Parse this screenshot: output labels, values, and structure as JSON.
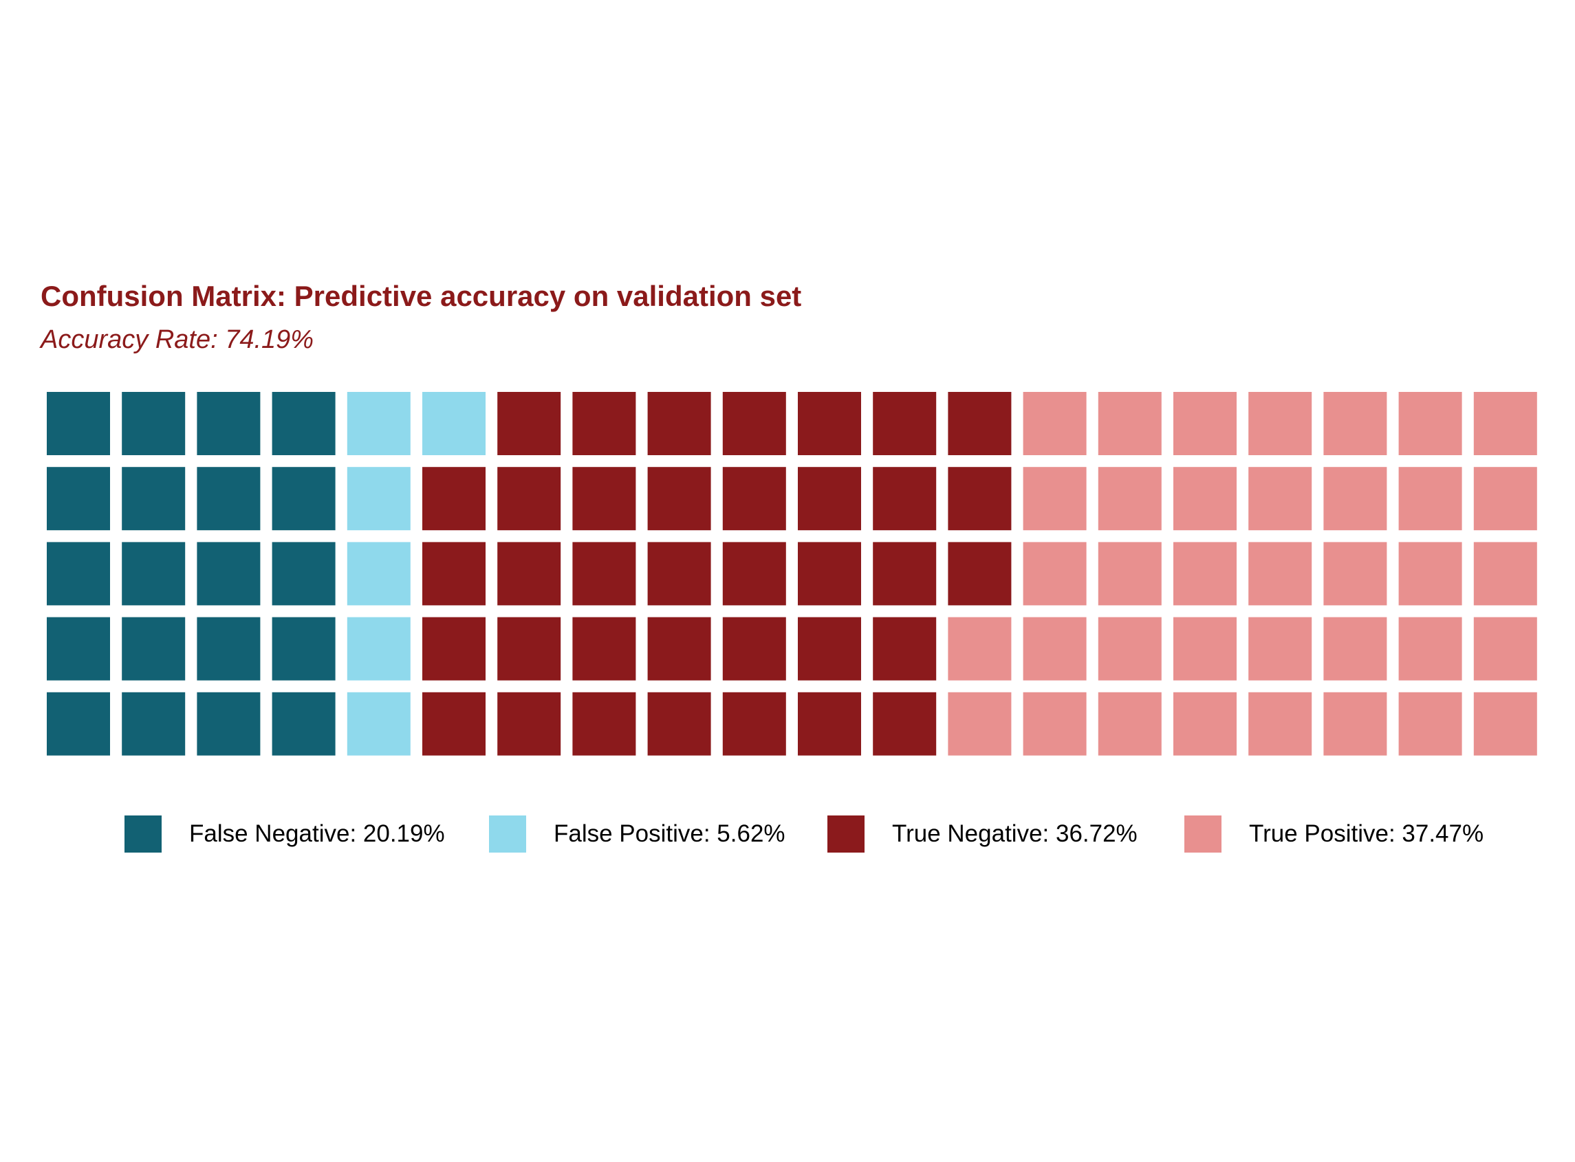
{
  "chart_data": {
    "type": "waffle",
    "title": "Confusion Matrix: Predictive accuracy on validation set",
    "subtitle": "Accuracy Rate: 74.19%",
    "title_color": "#8B1A1A",
    "grid": {
      "rows": 5,
      "columns": 20
    },
    "fill_order": "column-major, top to bottom",
    "categories": [
      {
        "name": "False Negative",
        "label": "False Negative: 20.19%",
        "percent": 20.19,
        "squares": 20,
        "color": "#126173"
      },
      {
        "name": "False Positive",
        "label": "False Positive: 5.62%",
        "percent": 5.62,
        "squares": 6,
        "color": "#8FD9EC"
      },
      {
        "name": "True Negative",
        "label": "True Negative: 36.72%",
        "percent": 36.72,
        "squares": 37,
        "color": "#8B1A1C"
      },
      {
        "name": "True Positive",
        "label": "True Positive: 37.47%",
        "percent": 37.47,
        "squares": 37,
        "color": "#E8908F"
      }
    ],
    "legend_position": "bottom"
  }
}
